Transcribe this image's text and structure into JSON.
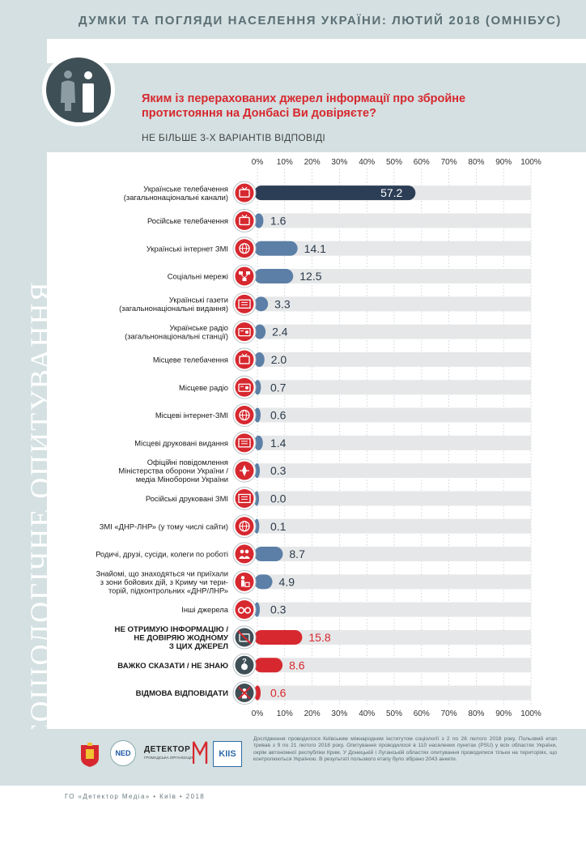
{
  "header": {
    "title": "ДУМКИ ТА ПОГЛЯДИ НАСЕЛЕННЯ УКРАЇНИ: ЛЮТИЙ 2018 (ОМНІБУС)"
  },
  "side_label": "СОЦІОЛОГІЧНЕ ОПИТУВАННЯ",
  "question": "Яким із перерахованих джерел інформації про збройне протистояння на Донбасі Ви довіряєте?",
  "subtitle": "НЕ БІЛЬШЕ 3-Х ВАРІАНТІВ ВІДПОВІДІ",
  "colors": {
    "accent_red": "#d7282f",
    "bar_blue": "#5b7fa6",
    "bar_navy": "#2c3e55",
    "track": "#e6e7e8",
    "icon_red": "#d7282f"
  },
  "chart_data": {
    "type": "bar",
    "orientation": "horizontal",
    "xlim": [
      0,
      100
    ],
    "x_ticks": [
      "0%",
      "10%",
      "20%",
      "30%",
      "40%",
      "50%",
      "60%",
      "70%",
      "80%",
      "90%",
      "100%"
    ],
    "categories": [
      "Українське телебачення (загальнонаціональні канали)",
      "Російське телебачення",
      "Українські інтернет ЗМІ",
      "Соціальні мережі",
      "Українські газети (загальнонаціональні видання)",
      "Українське радіо (загальнонаціональні станції)",
      "Місцеве телебачення",
      "Місцеве радіо",
      "Місцеві інтернет-ЗМІ",
      "Місцеві друковані видання",
      "Офіційні повідомлення Міністерства оборони України / медіа Міноборони України",
      "Російські друковані ЗМІ",
      "ЗМІ «ДНР-ЛНР» (у тому числі сайти)",
      "Родичі, друзі, сусіди, колеги по роботі",
      "Знайомі, що знаходяться чи приїхали з зони бойових дій, з Криму чи територій, підконтрольних «ДНР/ЛНР»",
      "Інші джерела",
      "НЕ ОТРИМУЮ ІНФОРМАЦІЮ / НЕ ДОВІРЯЮ ЖОДНОМУ З ЦИХ ДЖЕРЕЛ",
      "ВАЖКО СКАЗАТИ / НЕ ЗНАЮ",
      "ВІДМОВА ВІДПОВІДАТИ"
    ],
    "category_lines": [
      [
        "Українське телебачення",
        "(загальнонаціональні канали)"
      ],
      [
        "Російське телебачення"
      ],
      [
        "Українські інтернет ЗМІ"
      ],
      [
        "Соціальні мережі"
      ],
      [
        "Українські газети",
        "(загальнонаціональні видання)"
      ],
      [
        "Українське радіо",
        "(загальнонаціональні станції)"
      ],
      [
        "Місцеве телебачення"
      ],
      [
        "Місцеве радіо"
      ],
      [
        "Місцеві інтернет-ЗМІ"
      ],
      [
        "Місцеві друковані видання"
      ],
      [
        "Офіційні повідомлення",
        "Міністерства оборони України /",
        "медіа Міноборони України"
      ],
      [
        "Російські друковані ЗМІ"
      ],
      [
        "ЗМІ «ДНР-ЛНР» (у тому числі сайти)"
      ],
      [
        "Родичі, друзі, сусіди, колеги по роботі"
      ],
      [
        "Знайомі, що знаходяться чи приїхали",
        "з зони бойових дій, з Криму чи тери-",
        "торій, підконтрольних «ДНР/ЛНР»"
      ],
      [
        "Інші джерела"
      ],
      [
        "НЕ ОТРИМУЮ ІНФОРМАЦІЮ /",
        "НЕ ДОВІРЯЮ ЖОДНОМУ",
        "З ЦИХ ДЖЕРЕЛ"
      ],
      [
        "ВАЖКО СКАЗАТИ / НЕ ЗНАЮ"
      ],
      [
        "ВІДМОВА ВІДПОВІДАТИ"
      ]
    ],
    "values": [
      57.2,
      1.6,
      14.1,
      12.5,
      3.3,
      2.4,
      2.0,
      0.7,
      0.6,
      1.4,
      0.3,
      0.0,
      0.1,
      8.7,
      4.9,
      0.3,
      15.8,
      8.6,
      0.6
    ],
    "value_labels": [
      "57.2",
      "1.6",
      "14.1",
      "12.5",
      "3.3",
      "2.4",
      "2.0",
      "0.7",
      "0.6",
      "1.4",
      "0.3",
      "0.0",
      "0.1",
      "8.7",
      "4.9",
      "0.3",
      "15.8",
      "8.6",
      "0.6"
    ],
    "bar_colors": [
      "#2c3e55",
      "#5b7fa6",
      "#5b7fa6",
      "#5b7fa6",
      "#5b7fa6",
      "#5b7fa6",
      "#5b7fa6",
      "#5b7fa6",
      "#5b7fa6",
      "#5b7fa6",
      "#5b7fa6",
      "#5b7fa6",
      "#5b7fa6",
      "#5b7fa6",
      "#5b7fa6",
      "#5b7fa6",
      "#d7282f",
      "#d7282f",
      "#d7282f"
    ],
    "icons": [
      "tv-icon",
      "tv-icon",
      "internet-icon",
      "social-network-icon",
      "newspaper-icon",
      "radio-icon",
      "tv-icon",
      "radio-icon",
      "internet-icon",
      "newspaper-icon",
      "ministry-icon",
      "newspaper-icon",
      "internet-icon",
      "people-icon",
      "person-luggage-icon",
      "binoculars-icon",
      "no-tv-icon",
      "question-person-icon",
      "refuse-person-icon"
    ],
    "icon_colors": [
      "#d7282f",
      "#d7282f",
      "#d7282f",
      "#d7282f",
      "#d7282f",
      "#d7282f",
      "#d7282f",
      "#d7282f",
      "#d7282f",
      "#d7282f",
      "#d7282f",
      "#d7282f",
      "#d7282f",
      "#d7282f",
      "#d7282f",
      "#d7282f",
      "#3f4f56",
      "#3f4f56",
      "#3f4f56"
    ],
    "grid": true
  },
  "logos": {
    "ned": "NED",
    "detector": "ДЕТЕКТОР",
    "detector_sub": "ГРОМАДСЬКА ОРГАНІЗАЦІЯ",
    "kiis": "KIIS"
  },
  "footnote": "Дослідження проводилося Київським міжнародним інститутом соціології з 2 по 26 лютого 2018 року. Польовий етап тривав з 9 по 21 лютого 2018 року. Опитування проводилося в 110 населених пунктах (PSU) у всіх областях України, окрім автономної республіки Крим. У Донецькій і Луганській областях опитування проводилися тільки на територіях, що контролюються Україною. В результаті польового етапу було зібрано 2043 анкети.",
  "footer": "ГО «Детектор Медіа» • Київ • 2018"
}
